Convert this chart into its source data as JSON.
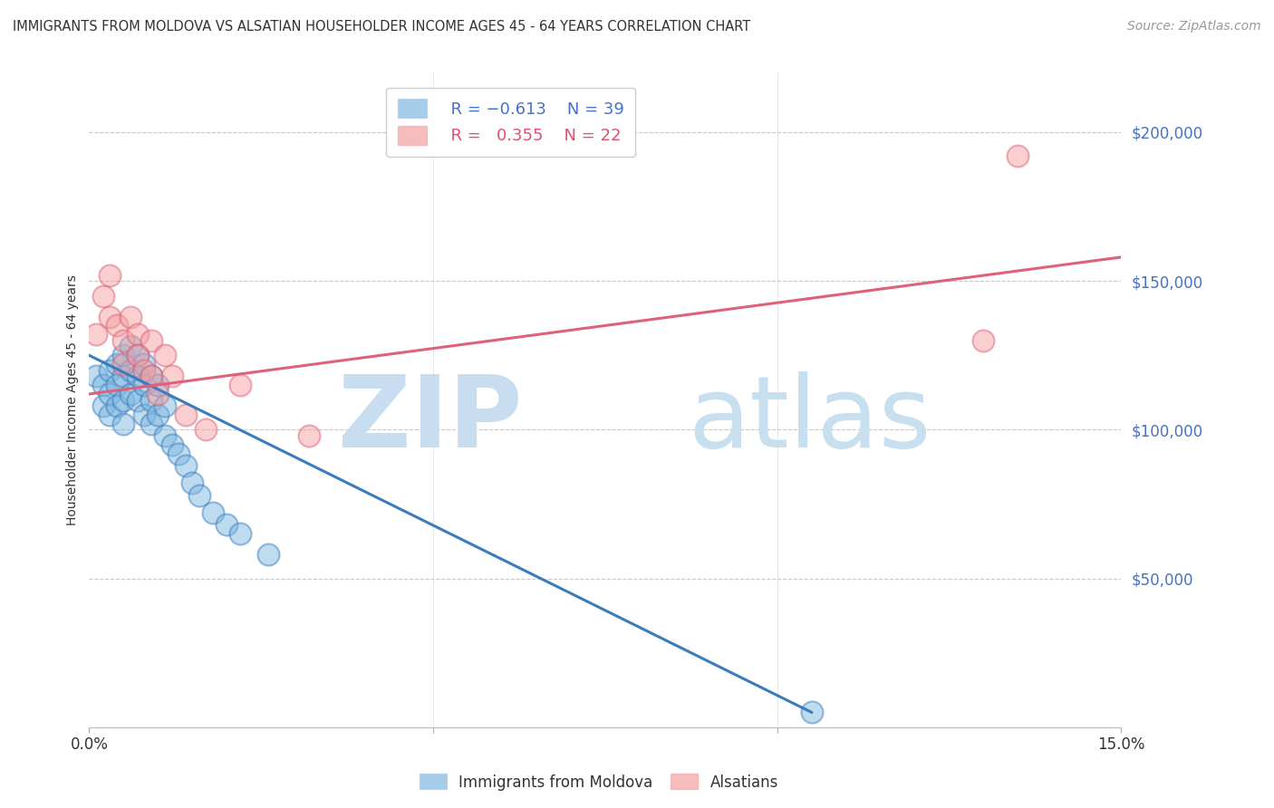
{
  "title": "IMMIGRANTS FROM MOLDOVA VS ALSATIAN HOUSEHOLDER INCOME AGES 45 - 64 YEARS CORRELATION CHART",
  "source": "Source: ZipAtlas.com",
  "ylabel": "Householder Income Ages 45 - 64 years",
  "ytick_labels": [
    "$50,000",
    "$100,000",
    "$150,000",
    "$200,000"
  ],
  "ytick_values": [
    50000,
    100000,
    150000,
    200000
  ],
  "ylim": [
    0,
    220000
  ],
  "xlim": [
    0.0,
    0.15
  ],
  "legend_blue_r": "-0.613",
  "legend_blue_n": "39",
  "legend_pink_r": "0.355",
  "legend_pink_n": "22",
  "blue_color": "#7fb8e0",
  "pink_color": "#f4a0a0",
  "blue_line_color": "#3a7dbf",
  "pink_line_color": "#e0607a",
  "blue_scatter_x": [
    0.001,
    0.002,
    0.002,
    0.003,
    0.003,
    0.003,
    0.004,
    0.004,
    0.004,
    0.005,
    0.005,
    0.005,
    0.005,
    0.006,
    0.006,
    0.006,
    0.007,
    0.007,
    0.007,
    0.008,
    0.008,
    0.008,
    0.009,
    0.009,
    0.009,
    0.01,
    0.01,
    0.011,
    0.011,
    0.012,
    0.013,
    0.014,
    0.015,
    0.016,
    0.018,
    0.02,
    0.022,
    0.026,
    0.105
  ],
  "blue_scatter_y": [
    118000,
    115000,
    108000,
    120000,
    112000,
    105000,
    122000,
    115000,
    108000,
    125000,
    118000,
    110000,
    102000,
    128000,
    120000,
    112000,
    125000,
    118000,
    110000,
    122000,
    115000,
    105000,
    118000,
    110000,
    102000,
    115000,
    105000,
    108000,
    98000,
    95000,
    92000,
    88000,
    82000,
    78000,
    72000,
    68000,
    65000,
    58000,
    5000
  ],
  "pink_scatter_x": [
    0.001,
    0.002,
    0.003,
    0.003,
    0.004,
    0.005,
    0.005,
    0.006,
    0.007,
    0.007,
    0.008,
    0.009,
    0.009,
    0.01,
    0.011,
    0.012,
    0.014,
    0.017,
    0.022,
    0.032,
    0.13,
    0.135
  ],
  "pink_scatter_y": [
    132000,
    145000,
    152000,
    138000,
    135000,
    130000,
    122000,
    138000,
    132000,
    125000,
    120000,
    130000,
    118000,
    112000,
    125000,
    118000,
    105000,
    100000,
    115000,
    98000,
    130000,
    192000
  ],
  "blue_line_x": [
    0.0,
    0.105
  ],
  "blue_line_y": [
    125000,
    5000
  ],
  "pink_line_x": [
    0.0,
    0.15
  ],
  "pink_line_y": [
    112000,
    158000
  ],
  "title_fontsize": 10.5,
  "axis_label_fontsize": 10,
  "tick_fontsize": 12,
  "legend_fontsize": 13,
  "source_fontsize": 10,
  "background_color": "#ffffff",
  "grid_color": "#c8c8c8"
}
